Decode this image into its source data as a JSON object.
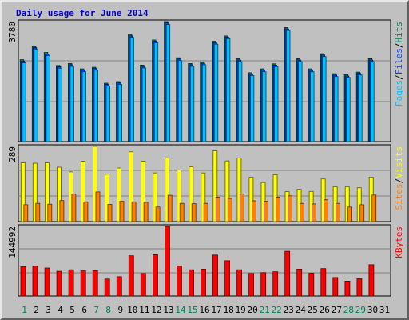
{
  "chart_data": {
    "title": "Daily usage for June 2014",
    "type": "bar",
    "categories": [
      "1",
      "2",
      "3",
      "4",
      "5",
      "6",
      "7",
      "8",
      "9",
      "10",
      "11",
      "12",
      "13",
      "14",
      "15",
      "16",
      "17",
      "18",
      "19",
      "20",
      "21",
      "22",
      "23",
      "24",
      "25",
      "26",
      "27",
      "28",
      "29",
      "30",
      "31"
    ],
    "weekend_days": [
      "1",
      "7",
      "8",
      "14",
      "15",
      "21",
      "22",
      "28",
      "29"
    ],
    "panels": [
      {
        "name": "pages-files-hits",
        "max_label": "3780",
        "ymax": 3780,
        "labels": [
          {
            "text": "Pages",
            "color": "#00c0ff"
          },
          {
            "text": "/",
            "color": "#000000"
          },
          {
            "text": "Files",
            "color": "#0040ff"
          },
          {
            "text": "/",
            "color": "#000000"
          },
          {
            "text": "Hits",
            "color": "#00805c"
          }
        ],
        "series": [
          {
            "name": "Hits",
            "color": "#00805c",
            "values": [
              2580,
              3000,
              2810,
              2400,
              2460,
              2290,
              2340,
              1840,
              1890,
              3380,
              2410,
              3200,
              3780,
              2640,
              2460,
              2510,
              3160,
              3330,
              2610,
              2170,
              2290,
              2450,
              3590,
              2610,
              2290,
              2770,
              2140,
              2110,
              2190,
              2610,
              null
            ]
          },
          {
            "name": "Files",
            "color": "#0040ff",
            "values": [
              2530,
              2960,
              2760,
              2360,
              2420,
              2250,
              2300,
              1800,
              1850,
              3330,
              2370,
              3160,
              3740,
              2600,
              2420,
              2470,
              3120,
              3290,
              2570,
              2130,
              2250,
              2410,
              3550,
              2570,
              2250,
              2730,
              2100,
              2070,
              2150,
              2570,
              null
            ]
          },
          {
            "name": "Pages",
            "color": "#00c0ff",
            "values": [
              2480,
              2910,
              2710,
              2310,
              2370,
              2200,
              2250,
              1750,
              1800,
              3280,
              2320,
              3110,
              3690,
              2550,
              2370,
              2420,
              3070,
              3240,
              2520,
              2080,
              2200,
              2360,
              3500,
              2520,
              2200,
              2680,
              2050,
              2020,
              2100,
              2520,
              null
            ]
          }
        ]
      },
      {
        "name": "visits-sites",
        "max_label": "289",
        "ymax": 289,
        "labels": [
          {
            "text": "Sites",
            "color": "#ff8000"
          },
          {
            "text": "/",
            "color": "#000000"
          },
          {
            "text": "Visits",
            "color": "#ffff00"
          }
        ],
        "series": [
          {
            "name": "Visits",
            "color": "#ffff00",
            "values": [
              226,
              224,
              226,
              209,
              191,
              232,
              289,
              182,
              206,
              268,
              232,
              187,
              245,
              198,
              211,
              187,
              272,
              233,
              244,
              170,
              150,
              180,
              115,
              124,
              116,
              164,
              134,
              133,
              130,
              170,
              null
            ]
          },
          {
            "name": "Sites",
            "color": "#ff8000",
            "values": [
              65,
              70,
              67,
              81,
              106,
              76,
              114,
              66,
              78,
              76,
              74,
              56,
              101,
              70,
              69,
              70,
              94,
              89,
              106,
              80,
              78,
              94,
              99,
              70,
              68,
              84,
              70,
              56,
              65,
              102,
              null
            ]
          }
        ]
      },
      {
        "name": "kbytes",
        "max_label": "144992",
        "ymax": 144992,
        "labels": [
          {
            "text": "KBytes",
            "color": "#ff0000"
          }
        ],
        "series": [
          {
            "name": "KBytes",
            "color": "#ff0000",
            "values": [
              61150,
              62720,
              58390,
              51490,
              54630,
              52270,
              52960,
              35380,
              40200,
              83880,
              46750,
              86030,
              144992,
              62430,
              54630,
              55990,
              85250,
              73440,
              54630,
              46750,
              48720,
              50500,
              93130,
              55990,
              47540,
              57160,
              38540,
              31060,
              35780,
              65090,
              null
            ]
          }
        ]
      }
    ]
  }
}
